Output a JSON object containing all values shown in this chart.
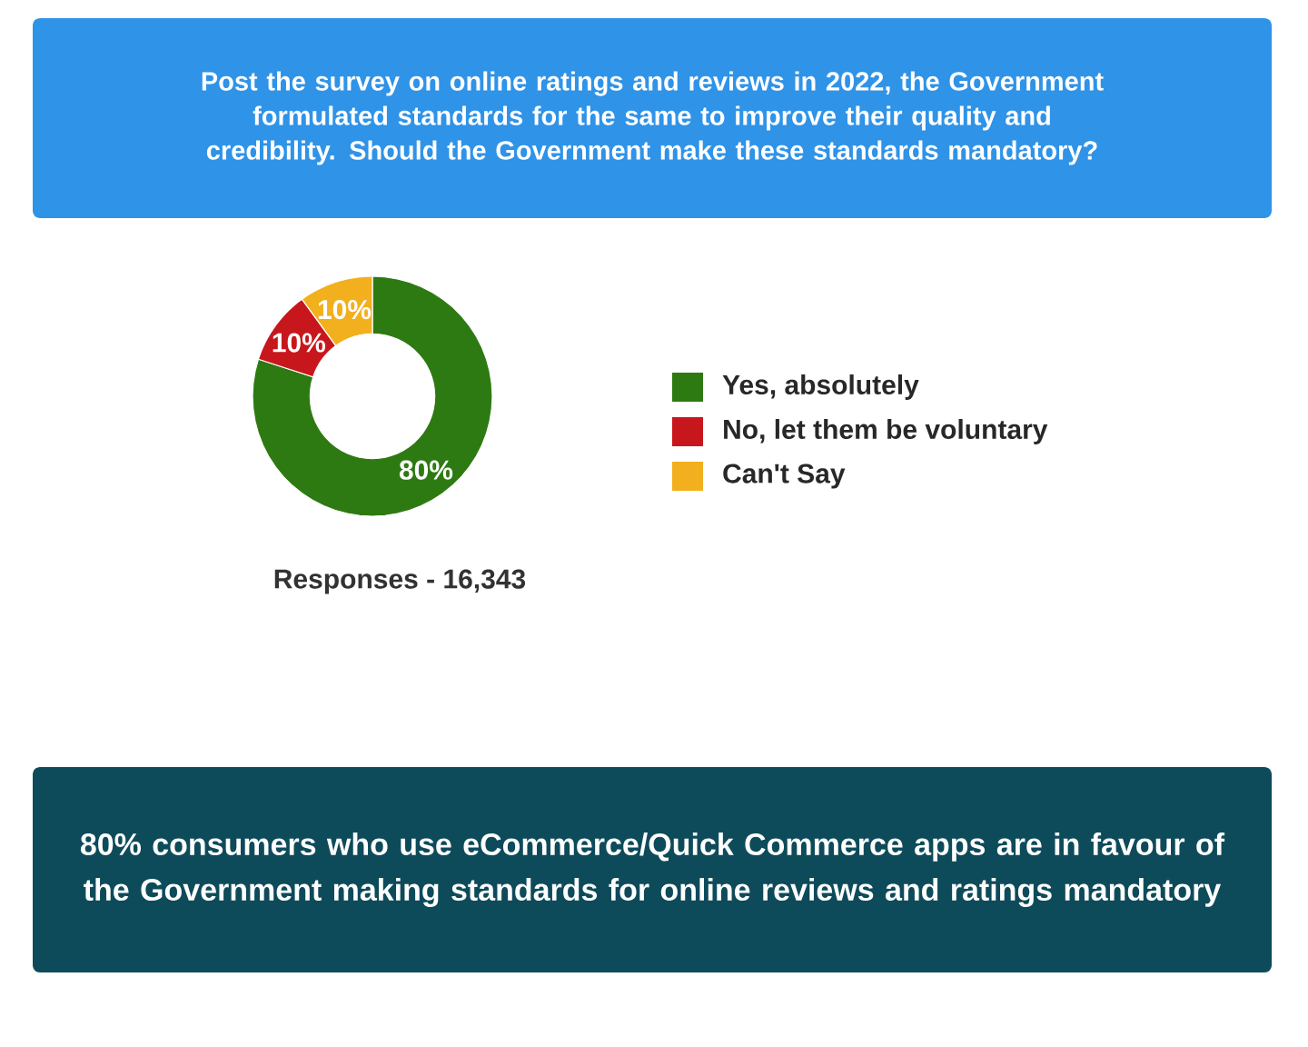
{
  "chart_data": {
    "type": "donut",
    "title": "Post the survey on online ratings and reviews in 2022, the Government formulated standards for the same to improve their quality and credibility. Should the Government make these standards mandatory?",
    "categories": [
      "Yes, absolutely",
      "No, let them be voluntary",
      "Can't Say"
    ],
    "values": [
      80,
      10,
      10
    ],
    "colors": [
      "#2e7a12",
      "#c8171c",
      "#f2b01e"
    ],
    "value_labels": [
      "80%",
      "10%",
      "10%"
    ],
    "legend": "right",
    "annotations": [
      "Responses - 16,343",
      "80% consumers who use eCommerce/Quick Commerce apps are in favour of the Government making standards for online reviews and ratings mandatory"
    ]
  }
}
